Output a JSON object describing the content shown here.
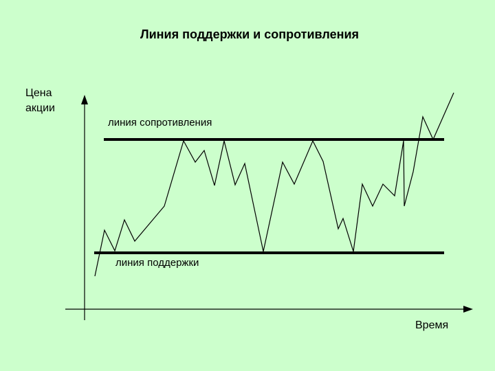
{
  "title": "Линия поддержки и сопротивления",
  "y_axis_label": [
    "Цена",
    "акции"
  ],
  "x_axis_label": "Время",
  "resistance_label": "линия сопротивления",
  "support_label": "линия поддержки"
}
